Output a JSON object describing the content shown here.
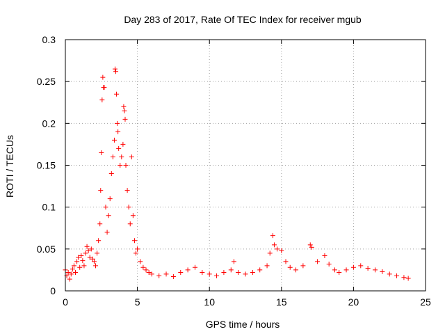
{
  "chart_data": {
    "type": "scatter",
    "title": "Day 283 of 2017, Rate Of TEC Index for receiver mgub",
    "xlabel": "GPS time / hours",
    "ylabel": "ROTI / TECUs",
    "xlim": [
      0,
      25
    ],
    "ylim": [
      0,
      0.3
    ],
    "x_ticks": [
      "0",
      "5",
      "10",
      "15",
      "20",
      "25"
    ],
    "y_ticks": [
      "0",
      "0.05",
      "0.1",
      "0.15",
      "0.2",
      "0.25",
      "0.3"
    ],
    "grid": true,
    "marker": "+",
    "color": "#ff0000",
    "series": [
      {
        "points": [
          [
            0.0,
            0.025
          ],
          [
            0.1,
            0.018
          ],
          [
            0.2,
            0.022
          ],
          [
            0.3,
            0.014
          ],
          [
            0.4,
            0.02
          ],
          [
            0.5,
            0.026
          ],
          [
            0.6,
            0.03
          ],
          [
            0.7,
            0.022
          ],
          [
            0.8,
            0.035
          ],
          [
            0.9,
            0.04
          ],
          [
            1.0,
            0.028
          ],
          [
            1.1,
            0.042
          ],
          [
            1.2,
            0.036
          ],
          [
            1.3,
            0.03
          ],
          [
            1.4,
            0.045
          ],
          [
            1.5,
            0.053
          ],
          [
            1.6,
            0.048
          ],
          [
            1.7,
            0.04
          ],
          [
            1.8,
            0.05
          ],
          [
            1.9,
            0.038
          ],
          [
            2.0,
            0.035
          ],
          [
            2.1,
            0.03
          ],
          [
            2.2,
            0.045
          ],
          [
            2.3,
            0.06
          ],
          [
            2.4,
            0.08
          ],
          [
            2.45,
            0.12
          ],
          [
            2.5,
            0.165
          ],
          [
            2.55,
            0.228
          ],
          [
            2.6,
            0.255
          ],
          [
            2.65,
            0.243
          ],
          [
            2.7,
            0.243
          ],
          [
            2.8,
            0.1
          ],
          [
            2.9,
            0.07
          ],
          [
            3.0,
            0.09
          ],
          [
            3.1,
            0.11
          ],
          [
            3.2,
            0.14
          ],
          [
            3.3,
            0.16
          ],
          [
            3.4,
            0.18
          ],
          [
            3.45,
            0.265
          ],
          [
            3.5,
            0.262
          ],
          [
            3.55,
            0.235
          ],
          [
            3.6,
            0.2
          ],
          [
            3.65,
            0.19
          ],
          [
            3.7,
            0.17
          ],
          [
            3.8,
            0.15
          ],
          [
            3.9,
            0.16
          ],
          [
            4.0,
            0.175
          ],
          [
            4.05,
            0.22
          ],
          [
            4.1,
            0.215
          ],
          [
            4.15,
            0.205
          ],
          [
            4.2,
            0.15
          ],
          [
            4.3,
            0.12
          ],
          [
            4.4,
            0.1
          ],
          [
            4.5,
            0.08
          ],
          [
            4.6,
            0.16
          ],
          [
            4.7,
            0.09
          ],
          [
            4.8,
            0.06
          ],
          [
            4.9,
            0.045
          ],
          [
            5.0,
            0.05
          ],
          [
            5.2,
            0.035
          ],
          [
            5.4,
            0.028
          ],
          [
            5.6,
            0.025
          ],
          [
            5.8,
            0.022
          ],
          [
            6.0,
            0.02
          ],
          [
            6.5,
            0.018
          ],
          [
            7.0,
            0.02
          ],
          [
            7.5,
            0.017
          ],
          [
            8.0,
            0.022
          ],
          [
            8.5,
            0.025
          ],
          [
            9.0,
            0.028
          ],
          [
            9.5,
            0.022
          ],
          [
            10.0,
            0.02
          ],
          [
            10.5,
            0.018
          ],
          [
            11.0,
            0.022
          ],
          [
            11.5,
            0.025
          ],
          [
            11.7,
            0.035
          ],
          [
            12.0,
            0.022
          ],
          [
            12.5,
            0.02
          ],
          [
            13.0,
            0.022
          ],
          [
            13.5,
            0.025
          ],
          [
            14.0,
            0.03
          ],
          [
            14.2,
            0.045
          ],
          [
            14.4,
            0.066
          ],
          [
            14.5,
            0.055
          ],
          [
            14.7,
            0.05
          ],
          [
            15.0,
            0.048
          ],
          [
            15.3,
            0.035
          ],
          [
            15.6,
            0.028
          ],
          [
            16.0,
            0.025
          ],
          [
            16.5,
            0.03
          ],
          [
            17.0,
            0.055
          ],
          [
            17.1,
            0.052
          ],
          [
            17.5,
            0.035
          ],
          [
            18.0,
            0.042
          ],
          [
            18.3,
            0.032
          ],
          [
            18.7,
            0.025
          ],
          [
            19.0,
            0.022
          ],
          [
            19.5,
            0.025
          ],
          [
            20.0,
            0.028
          ],
          [
            20.5,
            0.03
          ],
          [
            21.0,
            0.027
          ],
          [
            21.5,
            0.025
          ],
          [
            22.0,
            0.023
          ],
          [
            22.5,
            0.02
          ],
          [
            23.0,
            0.018
          ],
          [
            23.5,
            0.016
          ],
          [
            23.8,
            0.015
          ]
        ]
      }
    ]
  }
}
